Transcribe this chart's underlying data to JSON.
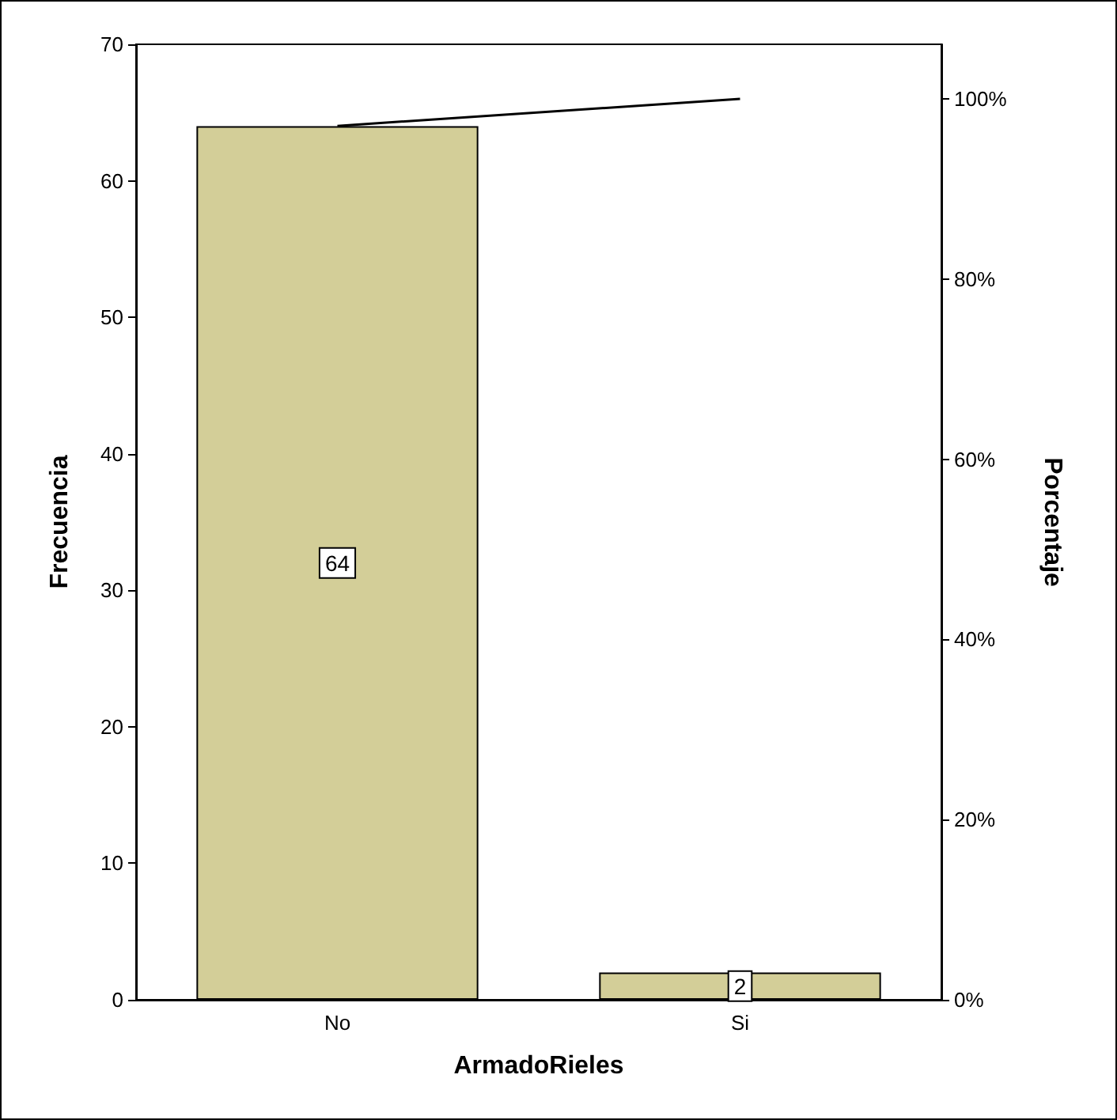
{
  "chart_data": {
    "type": "bar",
    "xlabel": "ArmadoRieles",
    "ylabel": "Frecuencia",
    "y2label": "Porcentaje",
    "categories": [
      "No",
      "Si"
    ],
    "series": [
      {
        "color": "#d3ce98",
        "values": [
          64,
          2
        ],
        "value_labels": [
          "64",
          "2"
        ]
      },
      {
        "type": "line",
        "axis": "y2",
        "color": "#000000",
        "values": [
          97,
          100
        ]
      }
    ],
    "ylim": [
      0,
      70
    ],
    "yticks": [
      0,
      10,
      20,
      30,
      40,
      50,
      60,
      70
    ],
    "y2lim": [
      0,
      106.06
    ],
    "y2ticks": [
      {
        "value": 0,
        "label": "0%"
      },
      {
        "value": 20,
        "label": "20%"
      },
      {
        "value": 40,
        "label": "40%"
      },
      {
        "value": 60,
        "label": "60%"
      },
      {
        "value": 80,
        "label": "80%"
      },
      {
        "value": 100,
        "label": "100%"
      }
    ],
    "marker": "none",
    "line_style": "solid",
    "grid": false
  }
}
